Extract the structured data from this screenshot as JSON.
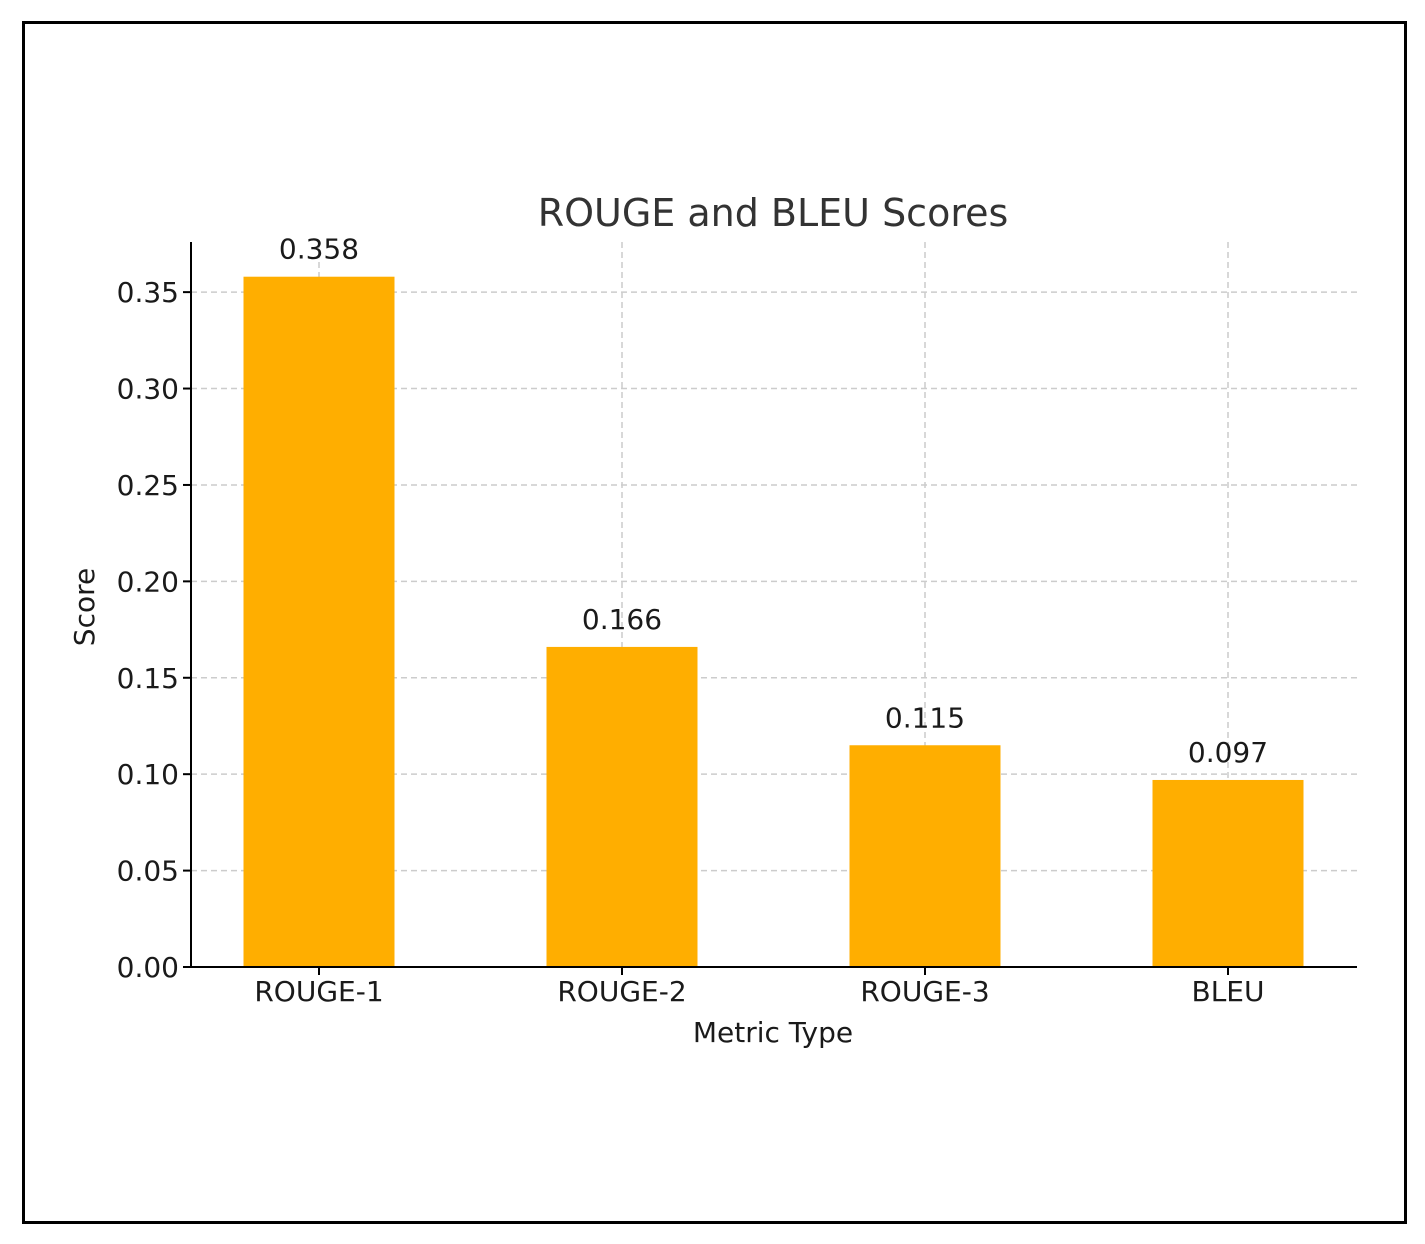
{
  "chart_data": {
    "type": "bar",
    "title": "ROUGE and BLEU Scores",
    "xlabel": "Metric Type",
    "ylabel": "Score",
    "categories": [
      "ROUGE-1",
      "ROUGE-2",
      "ROUGE-3",
      "BLEU"
    ],
    "values": [
      0.358,
      0.166,
      0.115,
      0.097
    ],
    "value_labels": [
      "0.358",
      "0.166",
      "0.115",
      "0.097"
    ],
    "ylim": [
      0,
      0.376
    ],
    "yticks": [
      0.0,
      0.05,
      0.1,
      0.15,
      0.2,
      0.25,
      0.3,
      0.35
    ],
    "ytick_labels": [
      "0.00",
      "0.05",
      "0.10",
      "0.15",
      "0.20",
      "0.25",
      "0.30",
      "0.35"
    ],
    "grid": true,
    "bar_color": "#FFAE00"
  }
}
